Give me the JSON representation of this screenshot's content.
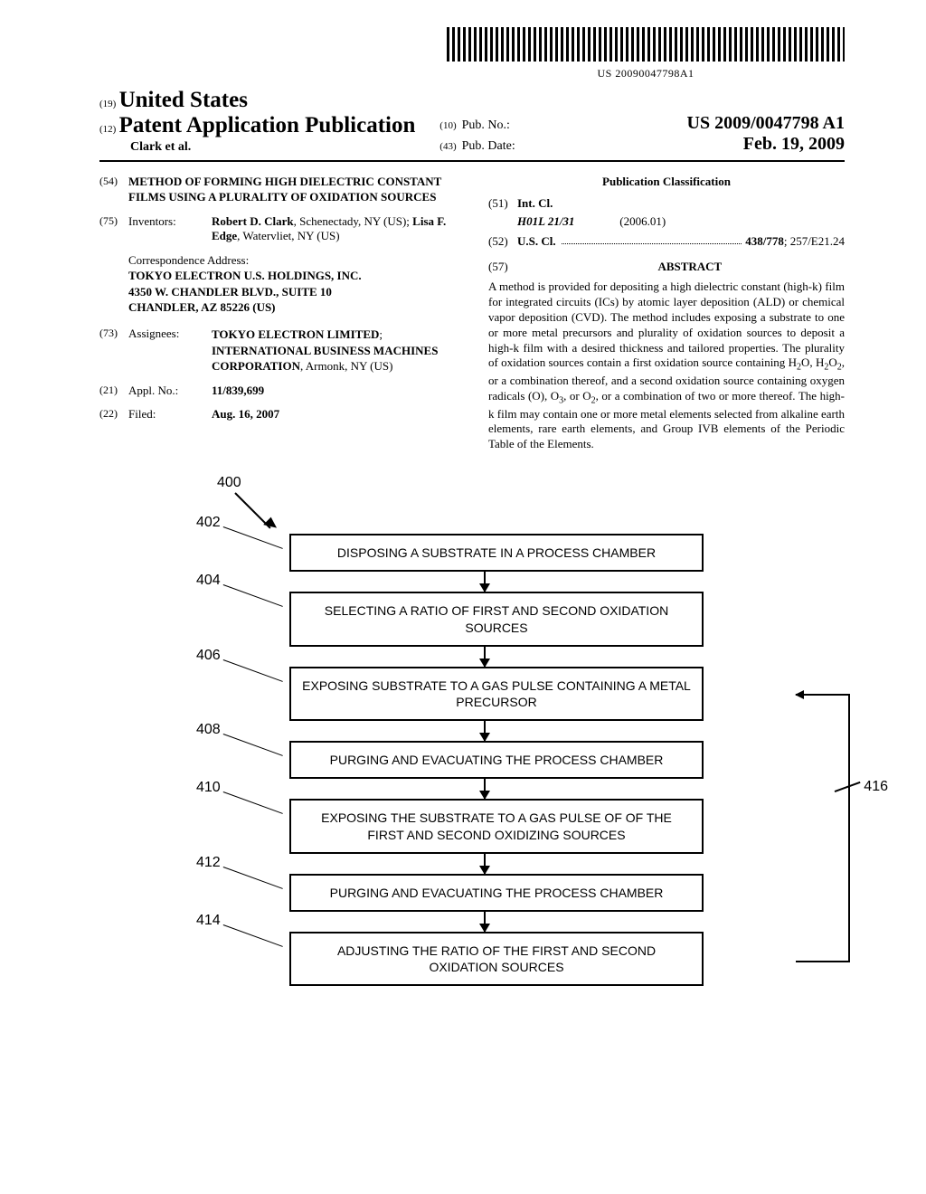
{
  "barcode_text": "US 20090047798A1",
  "header": {
    "code19": "(19)",
    "country": "United States",
    "code12": "(12)",
    "pubtype": "Patent Application Publication",
    "authors": "Clark et al.",
    "code10": "(10)",
    "pubno_label": "Pub. No.:",
    "pubno": "US 2009/0047798 A1",
    "code43": "(43)",
    "pubdate_label": "Pub. Date:",
    "pubdate": "Feb. 19, 2009"
  },
  "fields": {
    "title": {
      "code": "(54)",
      "text": "METHOD OF FORMING HIGH DIELECTRIC CONSTANT FILMS USING A PLURALITY OF OXIDATION SOURCES"
    },
    "inventors": {
      "code": "(75)",
      "label": "Inventors:",
      "text_html": "<b>Robert D. Clark</b>, Schenectady, NY (US); <b>Lisa F. Edge</b>, Watervliet, NY (US)"
    },
    "correspondence": {
      "label": "Correspondence Address:",
      "line1": "TOKYO ELECTRON U.S. HOLDINGS, INC.",
      "line2": "4350 W. CHANDLER BLVD., SUITE 10",
      "line3": "CHANDLER, AZ 85226 (US)"
    },
    "assignees": {
      "code": "(73)",
      "label": "Assignees:",
      "text_html": "<span class='bold'>TOKYO ELECTRON LIMITED</span>; <span class='bold'>INTERNATIONAL BUSINESS MACHINES CORPORATION</span>, Armonk, NY (US)"
    },
    "applno": {
      "code": "(21)",
      "label": "Appl. No.:",
      "value": "11/839,699"
    },
    "filed": {
      "code": "(22)",
      "label": "Filed:",
      "value": "Aug. 16, 2007"
    }
  },
  "pubclass": {
    "title": "Publication Classification",
    "intcl": {
      "code": "(51)",
      "label": "Int. Cl.",
      "class": "H01L 21/31",
      "edition": "(2006.01)"
    },
    "uscl": {
      "code": "(52)",
      "label": "U.S. Cl.",
      "primary": "438/778",
      "secondary": "; 257/E21.24"
    }
  },
  "abstract": {
    "code": "(57)",
    "label": "ABSTRACT",
    "text_html": "A method is provided for depositing a high dielectric constant (high-k) film for integrated circuits (ICs) by atomic layer deposition (ALD) or chemical vapor deposition (CVD). The method includes exposing a substrate to one or more metal precursors and plurality of oxidation sources to deposit a high-k film with a desired thickness and tailored properties. The plurality of oxidation sources contain a first oxidation source containing H<sub>2</sub>O, H<sub>2</sub>O<sub>2</sub>, or a combination thereof, and a second oxidation source containing oxygen radicals (O), O<sub>3</sub>, or O<sub>2</sub>, or a combination of two or more thereof. The high-k film may contain one or more metal elements selected from alkaline earth elements, rare earth elements, and Group IVB elements of the Periodic Table of the Elements."
  },
  "flowchart": {
    "ref": "400",
    "loop_ref": "416",
    "steps": [
      {
        "ref": "402",
        "text": "DISPOSING A SUBSTRATE IN A PROCESS CHAMBER"
      },
      {
        "ref": "404",
        "text": "SELECTING A RATIO OF FIRST AND SECOND OXIDATION SOURCES"
      },
      {
        "ref": "406",
        "text": "EXPOSING SUBSTRATE TO A GAS PULSE CONTAINING A METAL PRECURSOR"
      },
      {
        "ref": "408",
        "text": "PURGING AND EVACUATING THE PROCESS CHAMBER"
      },
      {
        "ref": "410",
        "text": "EXPOSING THE SUBSTRATE TO A GAS PULSE OF OF THE FIRST AND SECOND OXIDIZING SOURCES"
      },
      {
        "ref": "412",
        "text": "PURGING AND EVACUATING THE PROCESS CHAMBER"
      },
      {
        "ref": "414",
        "text": "ADJUSTING THE RATIO OF THE FIRST AND SECOND OXIDATION SOURCES"
      }
    ]
  }
}
